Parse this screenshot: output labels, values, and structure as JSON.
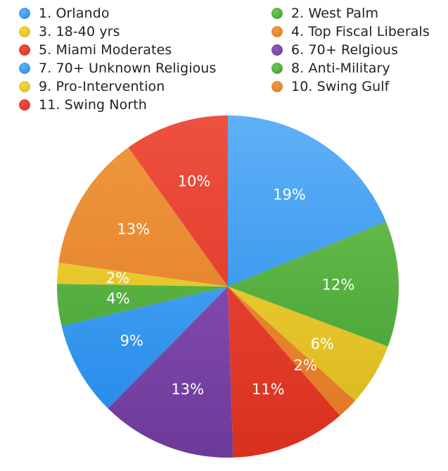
{
  "chart_data": {
    "type": "pie",
    "title": "",
    "legend_position": "top",
    "slices": [
      {
        "label": "1. Orlando",
        "value": 19,
        "pct_label": "19%",
        "color": "#1F87E8",
        "color_light": "#5FB0F7"
      },
      {
        "label": "2. West Palm",
        "value": 12,
        "pct_label": "12%",
        "color": "#3C9B2F",
        "color_light": "#72C653"
      },
      {
        "label": "3. 18-40 yrs",
        "value": 6,
        "pct_label": "6%",
        "color": "#D9B51C",
        "color_light": "#F3DA3E"
      },
      {
        "label": "4. Top Fiscal Liberals",
        "value": 2,
        "pct_label": "2%",
        "color": "#E17524",
        "color_light": "#EE9A3F"
      },
      {
        "label": "5. Miami Moderates",
        "value": 11,
        "pct_label": "11%",
        "color": "#D9301E",
        "color_light": "#EE5040"
      },
      {
        "label": "6. 70+ Relgious",
        "value": 13,
        "pct_label": "13%",
        "color": "#6E3A9A",
        "color_light": "#9059BD"
      },
      {
        "label": "7. 70+ Unknown Religious",
        "value": 9,
        "pct_label": "9%",
        "color": "#1F87E8",
        "color_light": "#5FB0F7"
      },
      {
        "label": "8. Anti-Military",
        "value": 4,
        "pct_label": "4%",
        "color": "#3C9B2F",
        "color_light": "#72C653"
      },
      {
        "label": "9. Pro-Intervention",
        "value": 2,
        "pct_label": "2%",
        "color": "#D9B51C",
        "color_light": "#F3DA3E"
      },
      {
        "label": "10. Swing Gulf",
        "value": 13,
        "pct_label": "13%",
        "color": "#E17524",
        "color_light": "#EE9A3F"
      },
      {
        "label": "11. Swing North",
        "value": 10,
        "pct_label": "10%",
        "color": "#D9301E",
        "color_light": "#EE5040"
      }
    ]
  }
}
